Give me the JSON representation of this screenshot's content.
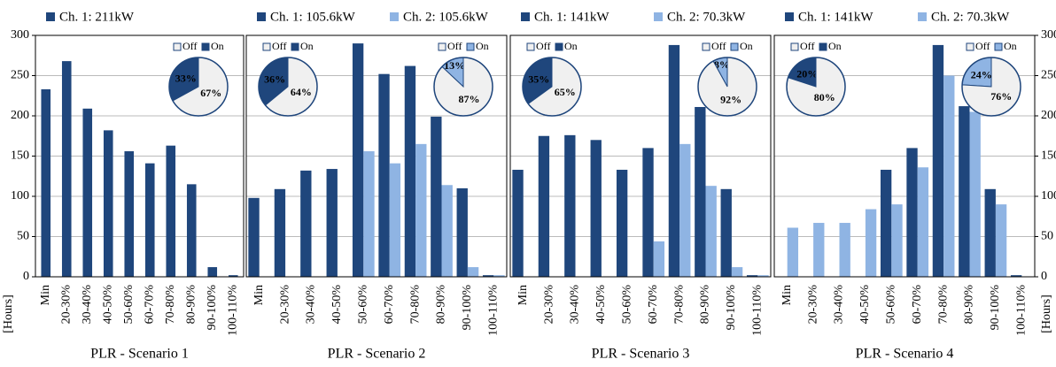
{
  "chart_data": [
    {
      "type": "bar",
      "xlabel": "PLR - Scenario 1",
      "ylabel": "[Hours]",
      "yaxis_side": "left",
      "categories": [
        "Min",
        "20-30%",
        "30-40%",
        "40-50%",
        "50-60%",
        "60-70%",
        "70-80%",
        "80-90%",
        "90-100%",
        "100-110%"
      ],
      "series": [
        {
          "name": "Ch. 1: 211kW",
          "color": "#1f467c",
          "values": [
            233,
            268,
            209,
            182,
            156,
            141,
            163,
            115,
            12,
            2
          ]
        }
      ],
      "ylim": [
        0,
        300
      ],
      "yticks": [
        0,
        50,
        100,
        150,
        200,
        250,
        300
      ],
      "grid": true,
      "pies": [
        {
          "type": "pie",
          "categories": [
            "Off",
            "On"
          ],
          "colors": [
            "#f0f0f0",
            "#1f467c"
          ],
          "values": [
            67,
            33
          ],
          "value_labels": [
            "67%",
            "33%"
          ]
        }
      ]
    },
    {
      "type": "bar",
      "xlabel": "PLR - Scenario 2",
      "categories": [
        "Min",
        "20-30%",
        "30-40%",
        "40-50%",
        "50-60%",
        "60-70%",
        "70-80%",
        "80-90%",
        "90-100%",
        "100-110%"
      ],
      "series": [
        {
          "name": "Ch. 1: 105.6kW",
          "color": "#1f467c",
          "values": [
            98,
            109,
            132,
            134,
            290,
            252,
            262,
            199,
            110,
            2
          ]
        },
        {
          "name": "Ch. 2: 105.6kW",
          "color": "#8fb4e3",
          "values": [
            0,
            0,
            0,
            0,
            156,
            141,
            165,
            114,
            12,
            2
          ]
        }
      ],
      "ylim": [
        0,
        300
      ],
      "yticks": [
        0,
        50,
        100,
        150,
        200,
        250,
        300
      ],
      "grid": true,
      "pies": [
        {
          "type": "pie",
          "categories": [
            "Off",
            "On"
          ],
          "colors": [
            "#f0f0f0",
            "#1f467c"
          ],
          "values": [
            64,
            36
          ],
          "value_labels": [
            "64%",
            "36%"
          ]
        },
        {
          "type": "pie",
          "categories": [
            "Off",
            "On"
          ],
          "colors": [
            "#f0f0f0",
            "#8fb4e3"
          ],
          "values": [
            87,
            13
          ],
          "value_labels": [
            "87%",
            "13%"
          ]
        }
      ]
    },
    {
      "type": "bar",
      "xlabel": "PLR - Scenario 3",
      "categories": [
        "Min",
        "20-30%",
        "30-40%",
        "40-50%",
        "50-60%",
        "60-70%",
        "70-80%",
        "80-90%",
        "90-100%",
        "100-110%"
      ],
      "series": [
        {
          "name": "Ch. 1: 141kW",
          "color": "#1f467c",
          "values": [
            133,
            175,
            176,
            170,
            133,
            160,
            288,
            211,
            109,
            2
          ]
        },
        {
          "name": "Ch. 2: 70.3kW",
          "color": "#8fb4e3",
          "values": [
            0,
            0,
            0,
            0,
            0,
            44,
            165,
            113,
            12,
            2
          ]
        }
      ],
      "ylim": [
        0,
        300
      ],
      "yticks": [
        0,
        50,
        100,
        150,
        200,
        250,
        300
      ],
      "grid": true,
      "pies": [
        {
          "type": "pie",
          "categories": [
            "Off",
            "On"
          ],
          "colors": [
            "#f0f0f0",
            "#1f467c"
          ],
          "values": [
            65,
            35
          ],
          "value_labels": [
            "65%",
            "35%"
          ]
        },
        {
          "type": "pie",
          "categories": [
            "Off",
            "On"
          ],
          "colors": [
            "#f0f0f0",
            "#8fb4e3"
          ],
          "values": [
            92,
            8
          ],
          "value_labels": [
            "92%",
            "8%"
          ]
        }
      ]
    },
    {
      "type": "bar",
      "xlabel": "PLR - Scenario 4",
      "ylabel": "[Hours]",
      "yaxis_side": "right",
      "categories": [
        "Min",
        "20-30%",
        "30-40%",
        "40-50%",
        "50-60%",
        "60-70%",
        "70-80%",
        "80-90%",
        "90-100%",
        "100-110%"
      ],
      "series": [
        {
          "name": "Ch. 1: 141kW",
          "color": "#1f467c",
          "values": [
            0,
            0,
            0,
            0,
            133,
            160,
            288,
            212,
            109,
            2
          ]
        },
        {
          "name": "Ch. 2: 70.3kW",
          "color": "#8fb4e3",
          "values": [
            61,
            67,
            67,
            84,
            90,
            136,
            250,
            205,
            90,
            0
          ]
        }
      ],
      "ylim": [
        0,
        300
      ],
      "yticks": [
        0,
        50,
        100,
        150,
        200,
        250,
        300
      ],
      "grid": true,
      "pies": [
        {
          "type": "pie",
          "categories": [
            "Off",
            "On"
          ],
          "colors": [
            "#f0f0f0",
            "#1f467c"
          ],
          "values": [
            80,
            20
          ],
          "value_labels": [
            "80%",
            "20%"
          ]
        },
        {
          "type": "pie",
          "categories": [
            "Off",
            "On"
          ],
          "colors": [
            "#f0f0f0",
            "#8fb4e3"
          ],
          "values": [
            76,
            24
          ],
          "value_labels": [
            "76%",
            "24%"
          ]
        }
      ]
    }
  ]
}
